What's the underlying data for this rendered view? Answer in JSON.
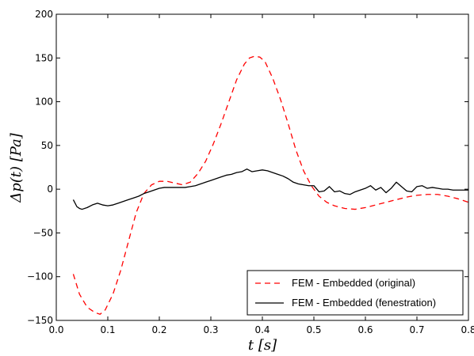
{
  "chart_data": {
    "type": "line",
    "title": "",
    "xlabel": "t [s]",
    "ylabel": "Δp(t) [Pa]",
    "xlim": [
      0.0,
      0.8
    ],
    "ylim": [
      -150,
      200
    ],
    "xticks": [
      "0.0",
      "0.1",
      "0.2",
      "0.3",
      "0.4",
      "0.5",
      "0.6",
      "0.7",
      "0.8"
    ],
    "yticks": [
      "200",
      "150",
      "100",
      "50",
      "0",
      "−50",
      "−100",
      "−150"
    ],
    "grid": false,
    "legend_position": "bottom-right",
    "series": [
      {
        "name": "FEM - Embedded (original)",
        "color": "#ff0000",
        "dash": "dashed",
        "x": [
          0.033,
          0.045,
          0.06,
          0.075,
          0.085,
          0.095,
          0.11,
          0.125,
          0.14,
          0.155,
          0.17,
          0.185,
          0.2,
          0.215,
          0.23,
          0.245,
          0.26,
          0.275,
          0.29,
          0.305,
          0.32,
          0.335,
          0.35,
          0.365,
          0.375,
          0.385,
          0.395,
          0.405,
          0.42,
          0.435,
          0.45,
          0.465,
          0.48,
          0.495,
          0.51,
          0.525,
          0.54,
          0.56,
          0.58,
          0.6,
          0.62,
          0.64,
          0.66,
          0.68,
          0.7,
          0.72,
          0.74,
          0.76,
          0.78,
          0.8
        ],
        "y": [
          -97,
          -120,
          -135,
          -141,
          -143,
          -138,
          -120,
          -93,
          -60,
          -27,
          -5,
          5,
          9,
          9,
          7,
          5,
          8,
          18,
          32,
          52,
          75,
          100,
          125,
          143,
          150,
          152,
          151,
          146,
          127,
          103,
          75,
          45,
          21,
          4,
          -8,
          -15,
          -19,
          -22,
          -23,
          -21,
          -18,
          -15,
          -12,
          -9,
          -7,
          -6,
          -6,
          -8,
          -11,
          -15
        ]
      },
      {
        "name": "FEM - Embedded (fenestration)",
        "color": "#000000",
        "dash": "solid",
        "x": [
          0.033,
          0.04,
          0.045,
          0.05,
          0.06,
          0.07,
          0.08,
          0.09,
          0.1,
          0.11,
          0.12,
          0.13,
          0.14,
          0.15,
          0.16,
          0.17,
          0.18,
          0.19,
          0.2,
          0.21,
          0.22,
          0.23,
          0.24,
          0.25,
          0.26,
          0.27,
          0.28,
          0.29,
          0.3,
          0.31,
          0.32,
          0.33,
          0.34,
          0.35,
          0.36,
          0.37,
          0.38,
          0.39,
          0.4,
          0.41,
          0.42,
          0.43,
          0.44,
          0.45,
          0.46,
          0.47,
          0.48,
          0.49,
          0.5,
          0.51,
          0.52,
          0.53,
          0.54,
          0.55,
          0.56,
          0.57,
          0.58,
          0.59,
          0.6,
          0.61,
          0.62,
          0.63,
          0.64,
          0.65,
          0.66,
          0.67,
          0.68,
          0.69,
          0.7,
          0.71,
          0.72,
          0.73,
          0.74,
          0.75,
          0.76,
          0.77,
          0.78,
          0.79,
          0.8
        ],
        "y": [
          -12,
          -20,
          -22,
          -23,
          -21,
          -18,
          -16,
          -18,
          -19,
          -18,
          -16,
          -14,
          -12,
          -10,
          -8,
          -5,
          -3,
          -1,
          1,
          2,
          2,
          2,
          2,
          2,
          3,
          4,
          6,
          8,
          10,
          12,
          14,
          16,
          17,
          19,
          20,
          23,
          20,
          21,
          22,
          21,
          19,
          17,
          15,
          12,
          8,
          6,
          5,
          4,
          4,
          -3,
          -2,
          3,
          -3,
          -2,
          -5,
          -6,
          -3,
          -1,
          1,
          4,
          -1,
          2,
          -4,
          1,
          8,
          3,
          -2,
          -3,
          3,
          4,
          1,
          2,
          1,
          0,
          0,
          -1,
          -1,
          -1,
          -1
        ]
      }
    ]
  }
}
